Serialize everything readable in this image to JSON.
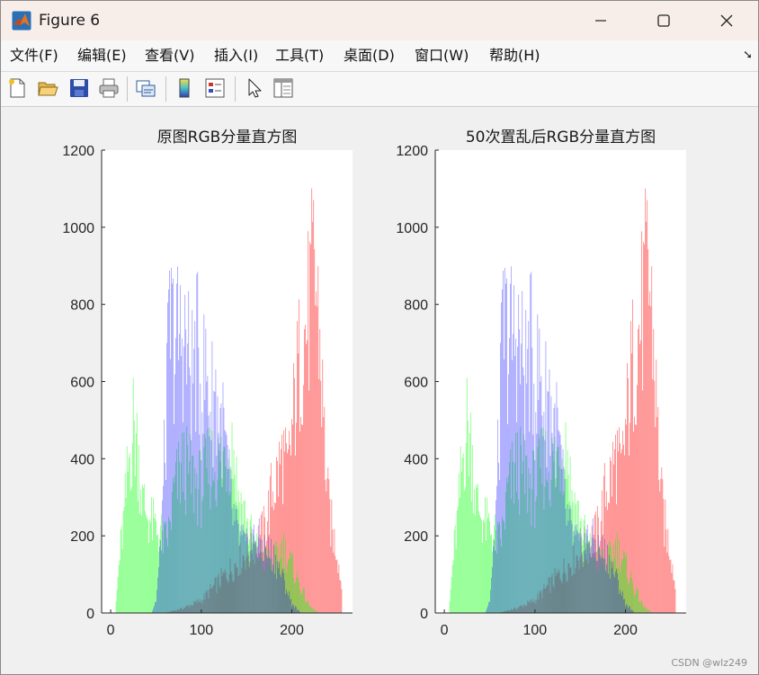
{
  "window": {
    "title": "Figure 6"
  },
  "menu": [
    "文件(F)",
    "编辑(E)",
    "查看(V)",
    "插入(I)",
    "工具(T)",
    "桌面(D)",
    "窗口(W)",
    "帮助(H)"
  ],
  "toolbar": [
    "new-figure",
    "open-file",
    "save",
    "print",
    "link-plot",
    "insert-colorbar",
    "insert-legend",
    "edit-plot",
    "property-inspector"
  ],
  "watermark": "CSDN @wlz249",
  "colors": {
    "red": "#ff0000",
    "green": "#00ff00",
    "blue": "#0000ff",
    "axes_bg": "#ffffff"
  },
  "chart_data": [
    {
      "type": "bar",
      "title": "原图RGB分量直方图",
      "xlim": [
        -10,
        267
      ],
      "ylim": [
        0,
        1200
      ],
      "xticks": [
        0,
        100,
        200
      ],
      "yticks": [
        0,
        200,
        400,
        600,
        800,
        1000,
        1200
      ],
      "series": [
        {
          "color": "red",
          "profile": [
            [
              0,
              0
            ],
            [
              60,
              0
            ],
            [
              80,
              15
            ],
            [
              100,
              40
            ],
            [
              120,
              100
            ],
            [
              140,
              160
            ],
            [
              160,
              220
            ],
            [
              170,
              260
            ],
            [
              178,
              380
            ],
            [
              185,
              440
            ],
            [
              190,
              500
            ],
            [
              195,
              420
            ],
            [
              200,
              560
            ],
            [
              205,
              700
            ],
            [
              210,
              820
            ],
            [
              215,
              880
            ],
            [
              220,
              960
            ],
            [
              225,
              1080
            ],
            [
              230,
              900
            ],
            [
              235,
              600
            ],
            [
              240,
              350
            ],
            [
              245,
              250
            ],
            [
              250,
              200
            ],
            [
              255,
              80
            ]
          ]
        },
        {
          "color": "green",
          "profile": [
            [
              0,
              0
            ],
            [
              5,
              0
            ],
            [
              10,
              180
            ],
            [
              15,
              300
            ],
            [
              20,
              480
            ],
            [
              25,
              590
            ],
            [
              30,
              520
            ],
            [
              35,
              350
            ],
            [
              45,
              280
            ],
            [
              55,
              250
            ],
            [
              60,
              220
            ],
            [
              65,
              260
            ],
            [
              70,
              380
            ],
            [
              80,
              460
            ],
            [
              90,
              420
            ],
            [
              100,
              390
            ],
            [
              110,
              470
            ],
            [
              120,
              460
            ],
            [
              130,
              520
            ],
            [
              135,
              540
            ],
            [
              140,
              380
            ],
            [
              150,
              280
            ],
            [
              160,
              200
            ],
            [
              170,
              170
            ],
            [
              180,
              160
            ],
            [
              190,
              210
            ],
            [
              200,
              150
            ],
            [
              210,
              80
            ],
            [
              220,
              20
            ],
            [
              230,
              0
            ]
          ]
        },
        {
          "color": "blue",
          "profile": [
            [
              0,
              0
            ],
            [
              45,
              0
            ],
            [
              50,
              40
            ],
            [
              55,
              200
            ],
            [
              60,
              520
            ],
            [
              65,
              900
            ],
            [
              70,
              860
            ],
            [
              75,
              850
            ],
            [
              80,
              880
            ],
            [
              85,
              800
            ],
            [
              90,
              750
            ],
            [
              95,
              830
            ],
            [
              100,
              700
            ],
            [
              105,
              760
            ],
            [
              110,
              640
            ],
            [
              115,
              700
            ],
            [
              120,
              600
            ],
            [
              125,
              560
            ],
            [
              130,
              420
            ],
            [
              135,
              300
            ],
            [
              140,
              250
            ],
            [
              150,
              200
            ],
            [
              160,
              240
            ],
            [
              170,
              200
            ],
            [
              180,
              180
            ],
            [
              190,
              110
            ],
            [
              200,
              30
            ],
            [
              210,
              0
            ]
          ]
        }
      ]
    },
    {
      "type": "bar",
      "title": "50次置乱后RGB分量直方图",
      "xlim": [
        -10,
        267
      ],
      "ylim": [
        0,
        1200
      ],
      "xticks": [
        0,
        100,
        200
      ],
      "yticks": [
        0,
        200,
        400,
        600,
        800,
        1000,
        1200
      ],
      "series": [
        {
          "color": "red",
          "profile": [
            [
              0,
              0
            ],
            [
              60,
              0
            ],
            [
              80,
              15
            ],
            [
              100,
              40
            ],
            [
              120,
              100
            ],
            [
              140,
              160
            ],
            [
              160,
              220
            ],
            [
              170,
              260
            ],
            [
              178,
              380
            ],
            [
              185,
              440
            ],
            [
              190,
              500
            ],
            [
              195,
              420
            ],
            [
              200,
              560
            ],
            [
              205,
              700
            ],
            [
              210,
              820
            ],
            [
              215,
              880
            ],
            [
              220,
              960
            ],
            [
              225,
              1080
            ],
            [
              230,
              900
            ],
            [
              235,
              600
            ],
            [
              240,
              350
            ],
            [
              245,
              250
            ],
            [
              250,
              200
            ],
            [
              255,
              80
            ]
          ]
        },
        {
          "color": "green",
          "profile": [
            [
              0,
              0
            ],
            [
              5,
              0
            ],
            [
              10,
              180
            ],
            [
              15,
              300
            ],
            [
              20,
              480
            ],
            [
              25,
              590
            ],
            [
              30,
              520
            ],
            [
              35,
              350
            ],
            [
              45,
              280
            ],
            [
              55,
              250
            ],
            [
              60,
              220
            ],
            [
              65,
              260
            ],
            [
              70,
              380
            ],
            [
              80,
              460
            ],
            [
              90,
              420
            ],
            [
              100,
              390
            ],
            [
              110,
              470
            ],
            [
              120,
              460
            ],
            [
              130,
              520
            ],
            [
              135,
              540
            ],
            [
              140,
              380
            ],
            [
              150,
              280
            ],
            [
              160,
              200
            ],
            [
              170,
              170
            ],
            [
              180,
              160
            ],
            [
              190,
              210
            ],
            [
              200,
              150
            ],
            [
              210,
              80
            ],
            [
              220,
              20
            ],
            [
              230,
              0
            ]
          ]
        },
        {
          "color": "blue",
          "profile": [
            [
              0,
              0
            ],
            [
              45,
              0
            ],
            [
              50,
              40
            ],
            [
              55,
              200
            ],
            [
              60,
              520
            ],
            [
              65,
              900
            ],
            [
              70,
              860
            ],
            [
              75,
              850
            ],
            [
              80,
              880
            ],
            [
              85,
              800
            ],
            [
              90,
              750
            ],
            [
              95,
              830
            ],
            [
              100,
              700
            ],
            [
              105,
              760
            ],
            [
              110,
              640
            ],
            [
              115,
              700
            ],
            [
              120,
              600
            ],
            [
              125,
              560
            ],
            [
              130,
              420
            ],
            [
              135,
              300
            ],
            [
              140,
              250
            ],
            [
              150,
              200
            ],
            [
              160,
              240
            ],
            [
              170,
              200
            ],
            [
              180,
              180
            ],
            [
              190,
              110
            ],
            [
              200,
              30
            ],
            [
              210,
              0
            ]
          ]
        }
      ]
    }
  ]
}
